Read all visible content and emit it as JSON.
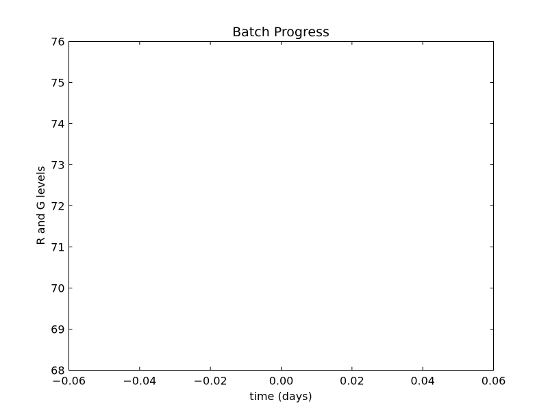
{
  "chart_data": {
    "type": "line",
    "title": "Batch Progress",
    "xlabel": "time (days)",
    "ylabel": "R and G levels",
    "xlim": [
      -0.06,
      0.06
    ],
    "ylim": [
      68,
      76
    ],
    "x_ticks": [
      -0.06,
      -0.04,
      -0.02,
      0.0,
      0.02,
      0.04,
      0.06
    ],
    "x_tick_labels": [
      "−0.06",
      "−0.04",
      "−0.02",
      "0.00",
      "0.02",
      "0.04",
      "0.06"
    ],
    "y_ticks": [
      68,
      69,
      70,
      71,
      72,
      73,
      74,
      75,
      76
    ],
    "y_tick_labels": [
      "68",
      "69",
      "70",
      "71",
      "72",
      "73",
      "74",
      "75",
      "76"
    ],
    "series": [],
    "grid": false,
    "colors": {
      "axes": "#000000",
      "background": "#ffffff"
    }
  }
}
